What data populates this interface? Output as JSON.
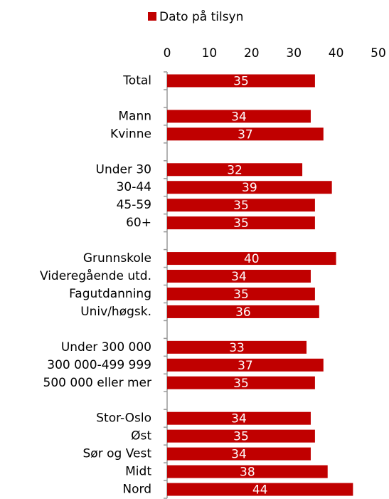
{
  "chart_data": {
    "type": "bar",
    "orientation": "horizontal",
    "categories": [
      "Total",
      null,
      "Mann",
      "Kvinne",
      null,
      "Under 30",
      "30-44",
      "45-59",
      "60+",
      null,
      "Grunnskole",
      "Videregående utd.",
      "Fagutdanning",
      "Univ/høgsk.",
      null,
      "Under 300 000",
      "300 000-499 999",
      "500 000 eller mer",
      null,
      "Stor-Oslo",
      "Øst",
      "Sør og Vest",
      "Midt",
      "Nord"
    ],
    "series": [
      {
        "name": "Dato på tilsyn",
        "color": "#c00000",
        "values": [
          35,
          null,
          34,
          37,
          null,
          32,
          39,
          35,
          35,
          null,
          40,
          34,
          35,
          36,
          null,
          33,
          37,
          35,
          null,
          34,
          35,
          34,
          38,
          44
        ]
      }
    ],
    "xlim": [
      0,
      50
    ],
    "xticks": [
      0,
      10,
      20,
      30,
      40,
      50
    ],
    "legend": "top",
    "grid": false
  }
}
